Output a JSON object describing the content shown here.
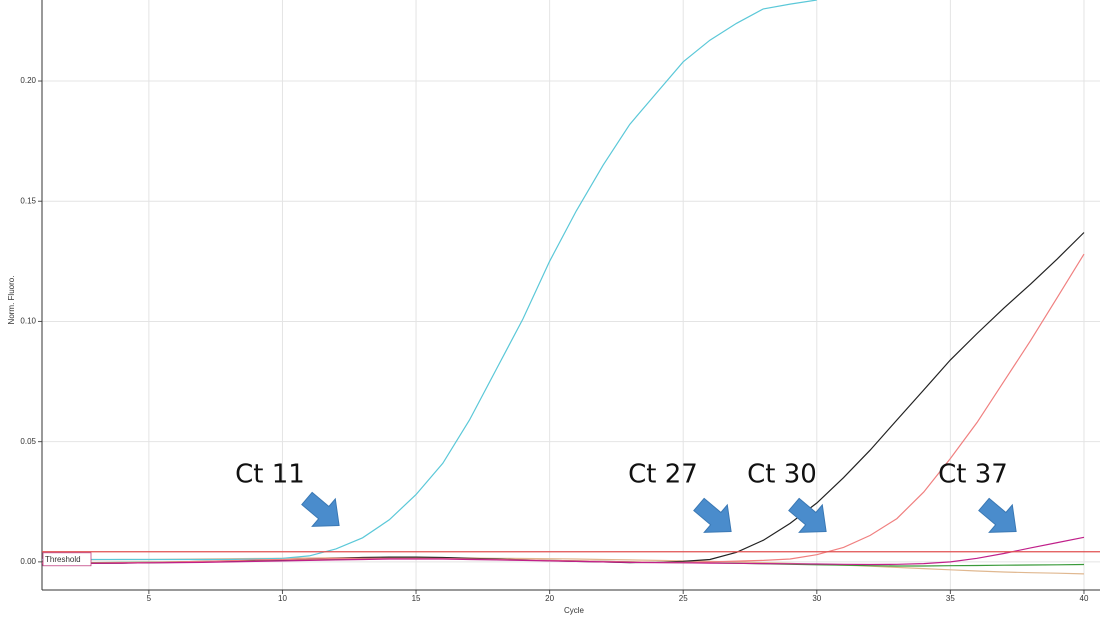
{
  "chart_data": {
    "type": "line",
    "x_label": "Cycle",
    "y_label": "Norm. Fluoro.",
    "xlim": [
      1,
      40.6
    ],
    "ylim": [
      -0.0117,
      0.2337
    ],
    "xticks": [
      5,
      10,
      15,
      20,
      25,
      30,
      35,
      40
    ],
    "yticks": [
      {
        "value": 0,
        "label": "0.00"
      },
      {
        "value": 0.05,
        "label": "0.05"
      },
      {
        "value": 0.1,
        "label": "0.10"
      },
      {
        "value": 0.15,
        "label": "0.15"
      },
      {
        "value": 0.2,
        "label": "0.20"
      }
    ],
    "grid": true,
    "x": [
      1,
      2,
      3,
      4,
      5,
      6,
      7,
      8,
      9,
      10,
      11,
      12,
      13,
      14,
      15,
      16,
      17,
      18,
      19,
      20,
      21,
      22,
      23,
      24,
      25,
      26,
      27,
      28,
      29,
      30,
      31,
      32,
      33,
      34,
      35,
      36,
      37,
      38,
      39,
      40
    ],
    "series": [
      {
        "color": "#e0b890",
        "values": [
          0.0008,
          0.0008,
          0.0009,
          0.001,
          0.001,
          0.0011,
          0.0012,
          0.0013,
          0.0014,
          0.0015,
          0.0016,
          0.0017,
          0.0018,
          0.0018,
          0.0018,
          0.0017,
          0.0016,
          0.0015,
          0.0014,
          0.0013,
          0.0012,
          0.001,
          0.0008,
          0.0006,
          0.0004,
          0.0002,
          0,
          -0.0003,
          -0.0006,
          -0.001,
          -0.0014,
          -0.0018,
          -0.0023,
          -0.0028,
          -0.0033,
          -0.0038,
          -0.0042,
          -0.0045,
          -0.0047,
          -0.005
        ]
      },
      {
        "color": "#3a9a3a",
        "values": [
          -0.0005,
          -0.0004,
          -0.0003,
          -0.0002,
          -0.0001,
          0,
          0.0002,
          0.0004,
          0.0006,
          0.0008,
          0.001,
          0.0012,
          0.0014,
          0.0015,
          0.0015,
          0.0014,
          0.0012,
          0.001,
          0.0008,
          0.0006,
          0.0004,
          0.0002,
          0,
          -0.0002,
          -0.0003,
          -0.0004,
          -0.0006,
          -0.0008,
          -0.001,
          -0.0012,
          -0.0014,
          -0.0016,
          -0.0017,
          -0.0017,
          -0.0016,
          -0.0015,
          -0.0014,
          -0.0013,
          -0.0012,
          -0.0011
        ]
      },
      {
        "color": "#5bc8d8",
        "values": [
          0.001,
          0.001,
          0.001,
          0.001,
          0.001,
          0.001,
          0.001,
          0.001,
          0.0012,
          0.0015,
          0.0025,
          0.0054,
          0.01,
          0.0175,
          0.028,
          0.041,
          0.059,
          0.08,
          0.101,
          0.125,
          0.146,
          0.165,
          0.182,
          0.195,
          0.208,
          0.217,
          0.224,
          0.23,
          0.232,
          0.2337,
          null,
          null,
          null,
          null,
          null,
          null,
          null,
          null,
          null,
          null
        ]
      },
      {
        "color": "#222222",
        "values": [
          -0.0008,
          -0.0007,
          -0.0006,
          -0.0005,
          -0.0004,
          -0.0002,
          0,
          0.0002,
          0.0005,
          0.0008,
          0.0012,
          0.0015,
          0.0018,
          0.002,
          0.002,
          0.0018,
          0.0015,
          0.0012,
          0.0008,
          0.0005,
          0.0002,
          0,
          -0.0003,
          -0.0002,
          0.0002,
          0.001,
          0.004,
          0.009,
          0.016,
          0.0245,
          0.035,
          0.0465,
          0.059,
          0.0715,
          0.084,
          0.095,
          0.1055,
          0.1155,
          0.126,
          0.137
        ]
      },
      {
        "color": "#f08080",
        "values": [
          -0.0005,
          -0.0005,
          -0.0004,
          -0.0003,
          -0.0002,
          0,
          0.0002,
          0.0005,
          0.0008,
          0.001,
          0.0012,
          0.0014,
          0.0015,
          0.0015,
          0.0015,
          0.0014,
          0.0012,
          0.001,
          0.0008,
          0.0006,
          0.0004,
          0.0002,
          0,
          -0.0002,
          -0.0002,
          0,
          0.0003,
          0.0006,
          0.0012,
          0.003,
          0.006,
          0.011,
          0.018,
          0.029,
          0.043,
          0.058,
          0.075,
          0.092,
          0.11,
          0.128
        ]
      },
      {
        "color": "#c0208a",
        "values": [
          -0.0008,
          -0.0007,
          -0.0006,
          -0.0005,
          -0.0004,
          -0.0003,
          -0.0002,
          0,
          0.0002,
          0.0004,
          0.0006,
          0.0008,
          0.001,
          0.0012,
          0.0012,
          0.0012,
          0.001,
          0.0008,
          0.0006,
          0.0004,
          0.0002,
          0,
          -0.0002,
          -0.0003,
          -0.0004,
          -0.0005,
          -0.0006,
          -0.0007,
          -0.0008,
          -0.0009,
          -0.001,
          -0.0011,
          -0.001,
          -0.0007,
          0,
          0.0015,
          0.0035,
          0.0058,
          0.008,
          0.0102
        ]
      }
    ],
    "threshold": {
      "value": 0.0042,
      "label": "Threshold",
      "color": "#e05050"
    },
    "annotations": [
      "Ct 11",
      "Ct 27",
      "Ct 30",
      "Ct 37"
    ]
  }
}
